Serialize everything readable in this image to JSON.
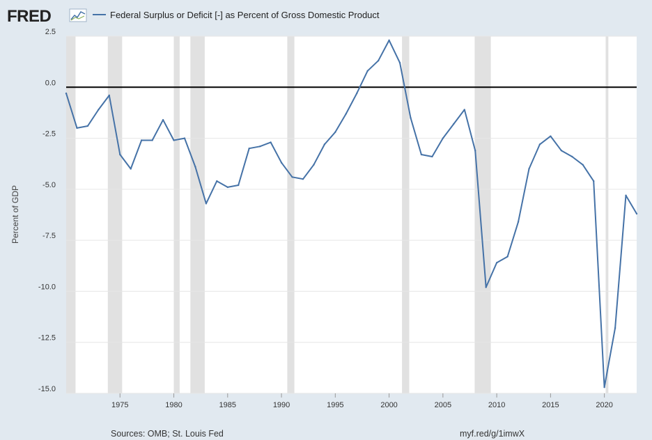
{
  "header": {
    "logo_text": "FRED",
    "legend_label": "Federal Surplus or Deficit [-] as Percent of Gross Domestic Product"
  },
  "footer": {
    "sources": "Sources: OMB; St. Louis Fed",
    "link": "myf.red/g/1imwX"
  },
  "colors": {
    "page_background": "#e1e9f0",
    "plot_background": "#ffffff",
    "line": "#4572a7",
    "recession_shading": "#e1e1e1",
    "zero_line": "#000000"
  },
  "chart_data": {
    "type": "line",
    "title": "Federal Surplus or Deficit [-] as Percent of Gross Domestic Product",
    "ylabel": "Percent of GDP",
    "xlabel": "",
    "ylim": [
      -15,
      2.5
    ],
    "xlim": [
      1970,
      2023
    ],
    "yticks": [
      "2.5",
      "0.0",
      "-2.5",
      "-5.0",
      "-7.5",
      "-10.0",
      "-12.5",
      "-15.0"
    ],
    "ytick_values": [
      2.5,
      0,
      -2.5,
      -5,
      -7.5,
      -10,
      -12.5,
      -15
    ],
    "xticks": [
      "1975",
      "1980",
      "1985",
      "1990",
      "1995",
      "2000",
      "2005",
      "2010",
      "2015",
      "2020"
    ],
    "xtick_values": [
      1975,
      1980,
      1985,
      1990,
      1995,
      2000,
      2005,
      2010,
      2015,
      2020
    ],
    "grid": "horizontal",
    "legend": "top-left",
    "reference_line": 0,
    "recessions": [
      [
        1970.0,
        1970.87
      ],
      [
        1973.87,
        1975.2
      ],
      [
        1980.0,
        1980.54
      ],
      [
        1981.54,
        1982.87
      ],
      [
        1990.54,
        1991.2
      ],
      [
        2001.2,
        2001.87
      ],
      [
        2007.95,
        2009.45
      ],
      [
        2020.12,
        2020.37
      ]
    ],
    "series": [
      {
        "name": "Federal Surplus or Deficit [-] as Percent of Gross Domestic Product",
        "x": [
          1970,
          1971,
          1972,
          1973,
          1974,
          1975,
          1976,
          1977,
          1978,
          1979,
          1980,
          1981,
          1982,
          1983,
          1984,
          1985,
          1986,
          1987,
          1988,
          1989,
          1990,
          1991,
          1992,
          1993,
          1994,
          1995,
          1996,
          1997,
          1998,
          1999,
          2000,
          2001,
          2002,
          2003,
          2004,
          2005,
          2006,
          2007,
          2008,
          2009,
          2010,
          2011,
          2012,
          2013,
          2014,
          2015,
          2016,
          2017,
          2018,
          2019,
          2020,
          2021,
          2022,
          2023
        ],
        "values": [
          -0.3,
          -2.0,
          -1.9,
          -1.1,
          -0.4,
          -3.3,
          -4.0,
          -2.6,
          -2.6,
          -1.6,
          -2.6,
          -2.5,
          -3.9,
          -5.7,
          -4.6,
          -4.9,
          -4.8,
          -3.0,
          -2.9,
          -2.7,
          -3.7,
          -4.4,
          -4.5,
          -3.8,
          -2.8,
          -2.2,
          -1.3,
          -0.3,
          0.8,
          1.3,
          2.3,
          1.2,
          -1.5,
          -3.3,
          -3.4,
          -2.5,
          -1.8,
          -1.1,
          -3.1,
          -9.8,
          -8.6,
          -8.3,
          -6.6,
          -4.0,
          -2.8,
          -2.4,
          -3.1,
          -3.4,
          -3.8,
          -4.6,
          -14.7,
          -11.8,
          -5.3,
          -6.2
        ]
      }
    ]
  }
}
